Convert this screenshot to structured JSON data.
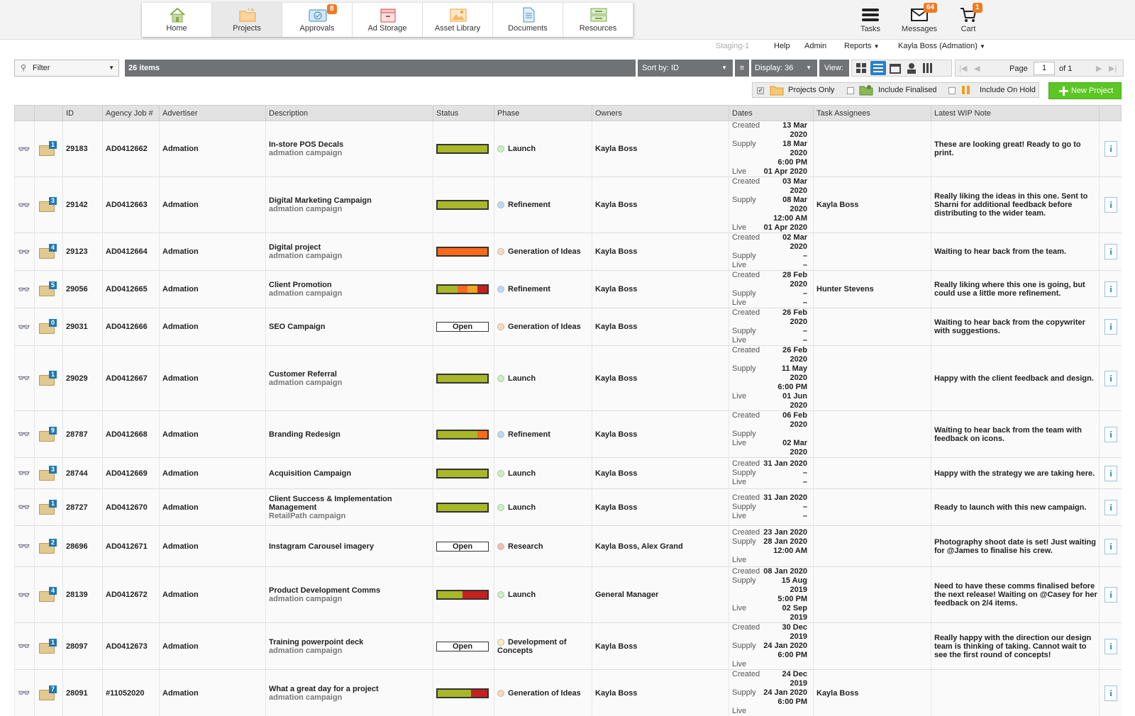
{
  "nav": {
    "tabs": [
      {
        "label": "Home",
        "icon": "home-icon"
      },
      {
        "label": "Projects",
        "icon": "projects-folder-icon"
      },
      {
        "label": "Approvals",
        "icon": "approvals-icon",
        "badge": "8"
      },
      {
        "label": "Ad Storage",
        "icon": "ad-storage-icon"
      },
      {
        "label": "Asset Library",
        "icon": "asset-library-icon"
      },
      {
        "label": "Documents",
        "icon": "documents-icon"
      },
      {
        "label": "Resources",
        "icon": "resources-icon"
      }
    ],
    "right": [
      {
        "label": "Tasks",
        "icon": "tasks-icon"
      },
      {
        "label": "Messages",
        "icon": "messages-icon",
        "badge": "64"
      },
      {
        "label": "Cart",
        "icon": "cart-icon",
        "badge": "1"
      }
    ]
  },
  "submenu": {
    "env": "Staging-1",
    "help": "Help",
    "admin": "Admin",
    "reports": "Reports",
    "user": "Kayla Boss (Admation)"
  },
  "toolbar": {
    "filter": "Filter",
    "items_count": "26 items",
    "sort": "Sort by: ID",
    "display": "Display: 36",
    "view": "View:",
    "page_label": "Page",
    "page_value": "1",
    "page_of": "of 1"
  },
  "filters": {
    "projects_only": "Projects Only",
    "include_finalised": "Include Finalised",
    "include_on_hold": "Include On Hold",
    "new_project": "New Project"
  },
  "colors": {
    "green": "#a8b828",
    "orange": "#ff6a1a",
    "red": "#c8201e",
    "amber": "#f4a424",
    "accent": "#5cc624"
  },
  "columns": [
    "",
    "",
    "ID",
    "Agency Job #",
    "Advertiser",
    "Description",
    "Status",
    "Phase",
    "Owners",
    "Dates",
    "Task Assignees",
    "Latest WIP Note",
    ""
  ],
  "rows": [
    {
      "n": "1",
      "id": "29183",
      "job": "AD0412662",
      "adv": "Admation",
      "desc": "In-store POS Decals",
      "sub": "admation campaign",
      "status": "bar",
      "segs": [
        [
          "#a8b828",
          1
        ]
      ],
      "phase": "Launch",
      "phaseColor": "#c8f0c0",
      "owners": "Kayla Boss",
      "created": "13 Mar 2020",
      "supply": "18 Mar 2020",
      "supply2": "6:00 PM",
      "live": "01 Apr 2020",
      "assignee": "",
      "note": "These are looking great! Ready to go to print."
    },
    {
      "n": "3",
      "id": "29142",
      "job": "AD0412663",
      "adv": "Admation",
      "desc": "Digital Marketing Campaign",
      "sub": "admation campaign",
      "status": "bar",
      "segs": [
        [
          "#a8b828",
          1
        ]
      ],
      "phase": "Refinement",
      "phaseColor": "#bcd8f4",
      "owners": "Kayla Boss",
      "created": "03 Mar 2020",
      "supply": "08 Mar 2020",
      "supply2": "12:00 AM",
      "live": "01 Apr 2020",
      "assignee": "Kayla Boss",
      "note": "Really liking the ideas in this one. Sent to Sharni for additional feedback before distributing to the wider team."
    },
    {
      "n": "4",
      "id": "29123",
      "job": "AD0412664",
      "adv": "Admation",
      "desc": "Digital project",
      "sub": "admation campaign",
      "status": "bar",
      "segs": [
        [
          "#ff6a1a",
          1
        ]
      ],
      "phase": "Generation of Ideas",
      "phaseColor": "#fcd8b8",
      "owners": "Kayla Boss",
      "created": "02 Mar 2020",
      "supply": "–",
      "supply2": "",
      "live": "–",
      "assignee": "",
      "note": "Waiting to hear back from the team."
    },
    {
      "n": "5",
      "id": "29056",
      "job": "AD0412665",
      "adv": "Admation",
      "desc": "Client Promotion",
      "sub": "admation campaign",
      "status": "bar",
      "segs": [
        [
          "#a8b828",
          4
        ],
        [
          "#ff6a1a",
          2
        ],
        [
          "#f4a424",
          2
        ],
        [
          "#c8201e",
          2
        ]
      ],
      "phase": "Refinement",
      "phaseColor": "#bcd8f4",
      "owners": "Kayla Boss",
      "created": "28 Feb 2020",
      "supply": "–",
      "supply2": "",
      "live": "–",
      "assignee": "Hunter Stevens",
      "note": "Really liking where this one is going, but could use a little more refinement."
    },
    {
      "n": "0",
      "id": "29031",
      "job": "AD0412666",
      "adv": "Admation",
      "desc": "SEO Campaign",
      "sub": "",
      "status": "Open",
      "segs": [],
      "phase": "Generation of Ideas",
      "phaseColor": "#fcd8b8",
      "owners": "Kayla Boss",
      "created": "26 Feb 2020",
      "supply": "–",
      "supply2": "",
      "live": "–",
      "assignee": "",
      "note": "Waiting to hear back from the copywriter with suggestions."
    },
    {
      "n": "1",
      "id": "29029",
      "job": "AD0412667",
      "adv": "Admation",
      "desc": "Customer Referral",
      "sub": "admation campaign",
      "status": "bar",
      "segs": [
        [
          "#a8b828",
          1
        ]
      ],
      "phase": "Launch",
      "phaseColor": "#c8f0c0",
      "owners": "Kayla Boss",
      "created": "26 Feb 2020",
      "supply": "11 May 2020",
      "supply2": "6:00 PM",
      "live": "01 Jun 2020",
      "assignee": "",
      "note": "Happy with the client feedback and design."
    },
    {
      "n": "9",
      "id": "28787",
      "job": "AD0412668",
      "adv": "Admation",
      "desc": "Branding Redesign",
      "sub": "",
      "status": "bar",
      "segs": [
        [
          "#a8b828",
          8
        ],
        [
          "#ff6a1a",
          2
        ]
      ],
      "phase": "Refinement",
      "phaseColor": "#bcd8f4",
      "owners": "Kayla Boss",
      "created": "06 Feb 2020",
      "supply": "",
      "supply2": "",
      "live": "02 Mar 2020",
      "assignee": "",
      "note": "Waiting to hear back from the team with feedback on icons."
    },
    {
      "n": "3",
      "id": "28744",
      "job": "AD0412669",
      "adv": "Admation",
      "desc": "Acquisition Campaign",
      "sub": "",
      "status": "bar",
      "segs": [
        [
          "#a8b828",
          1
        ]
      ],
      "phase": "Launch",
      "phaseColor": "#c8f0c0",
      "owners": "Kayla Boss",
      "created": "31 Jan 2020",
      "supply": "–",
      "supply2": "",
      "live": "–",
      "assignee": "",
      "note": "Happy with the strategy we are taking here."
    },
    {
      "n": "1",
      "id": "28727",
      "job": "AD0412670",
      "adv": "Admation",
      "desc": "Client Success & Implementation Management",
      "sub": "RetailPath campaign",
      "status": "bar",
      "segs": [
        [
          "#a8b828",
          1
        ]
      ],
      "phase": "Launch",
      "phaseColor": "#c8f0c0",
      "owners": "Kayla Boss",
      "created": "31 Jan 2020",
      "supply": "–",
      "supply2": "",
      "live": "–",
      "assignee": "",
      "note": "Ready to launch with this new campaign."
    },
    {
      "n": "2",
      "id": "28696",
      "job": "AD0412671",
      "adv": "Admation",
      "desc": "Instagram Carousel imagery",
      "sub": "",
      "status": "Open",
      "segs": [],
      "phase": "Research",
      "phaseColor": "#f8b8b8",
      "owners": "Kayla Boss, Alex Grand",
      "created": "23 Jan 2020",
      "supply": "28 Jan 2020",
      "supply2": "12:00 AM",
      "live": "",
      "assignee": "",
      "note": "Photography shoot date is set! Just waiting for @James to finalise his crew."
    },
    {
      "n": "4",
      "id": "28139",
      "job": "AD0412672",
      "adv": "Admation",
      "desc": "Product Development Comms",
      "sub": "admation campaign",
      "status": "bar",
      "segs": [
        [
          "#a8b828",
          5
        ],
        [
          "#c8201e",
          5
        ]
      ],
      "phase": "Launch",
      "phaseColor": "#c8f0c0",
      "owners": "General Manager",
      "created": "08 Jan 2020",
      "supply": "15 Aug 2019",
      "supply2": "5:00 PM",
      "live": "02 Sep 2019",
      "assignee": "",
      "note": "Need to have these comms finalised before the next release! Waiting on @Casey for her feedback on 2/4 items."
    },
    {
      "n": "1",
      "id": "28097",
      "job": "AD0412673",
      "adv": "Admation",
      "desc": "Training powerpoint deck",
      "sub": "admation campaign",
      "status": "Open",
      "segs": [],
      "phase": "Development of Concepts",
      "phaseColor": "#f8f0b8",
      "owners": "Kayla Boss",
      "created": "30 Dec 2019",
      "supply": "24 Jan 2020",
      "supply2": "6:00 PM",
      "live": "",
      "assignee": "",
      "note": "Really happy with the direction our design team is thinking of taking. Cannot wait to see the first round of concepts!"
    },
    {
      "n": "7",
      "id": "28091",
      "job": "#11052020",
      "adv": "Admation",
      "desc": "What a great day for a project",
      "sub": "admation campaign",
      "status": "bar",
      "segs": [
        [
          "#a8b828",
          6
        ],
        [
          "#c8201e",
          3
        ]
      ],
      "phase": "Generation of Ideas",
      "phaseColor": "#fcd8b8",
      "owners": "Kayla Boss",
      "created": "24 Dec 2019",
      "supply": "24 Jan 2020",
      "supply2": "6:00 PM",
      "live": "",
      "assignee": "Kayla Boss",
      "note": ""
    }
  ]
}
